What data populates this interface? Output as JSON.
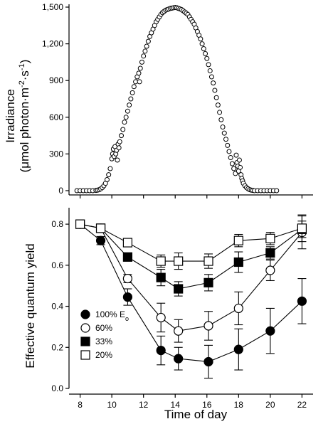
{
  "chart_data": [
    {
      "type": "scatter",
      "ylabel_line1": "Irradiance",
      "ylabel_line2_prefix": "(μmol photon·m",
      "ylabel_line2_exp1": "-2",
      "ylabel_line2_mid": "·s",
      "ylabel_line2_exp2": "-1",
      "ylabel_line2_suffix": ")",
      "ylim": [
        0,
        1500
      ],
      "xlim": [
        7.3,
        22.7
      ],
      "yticks": [
        0,
        300,
        600,
        900,
        1200,
        1500
      ],
      "ytick_labels": [
        "0",
        "300",
        "600",
        "900",
        "1,200",
        "1,500"
      ],
      "series": [
        {
          "marker": "open-circle",
          "x": [
            7.8,
            8.0,
            8.2,
            8.4,
            8.6,
            8.8,
            9.0,
            9.1,
            9.2,
            9.3,
            9.4,
            9.5,
            9.6,
            9.7,
            9.8,
            9.9,
            10.0,
            10.05,
            10.1,
            10.15,
            10.2,
            10.25,
            10.3,
            10.35,
            10.4,
            10.45,
            10.5,
            10.6,
            10.7,
            10.8,
            10.9,
            11.0,
            11.1,
            11.2,
            11.3,
            11.4,
            11.5,
            11.6,
            11.7,
            11.75,
            11.8,
            11.9,
            12.0,
            12.1,
            12.2,
            12.3,
            12.4,
            12.5,
            12.6,
            12.7,
            12.8,
            12.9,
            13.0,
            13.1,
            13.2,
            13.3,
            13.4,
            13.5,
            13.6,
            13.7,
            13.8,
            13.9,
            14.0,
            14.1,
            14.2,
            14.3,
            14.4,
            14.5,
            14.6,
            14.7,
            14.8,
            14.9,
            15.0,
            15.1,
            15.2,
            15.3,
            15.4,
            15.5,
            15.6,
            15.7,
            15.8,
            15.9,
            16.0,
            16.1,
            16.2,
            16.3,
            16.4,
            16.5,
            16.6,
            16.7,
            16.8,
            16.9,
            17.0,
            17.1,
            17.2,
            17.3,
            17.4,
            17.5,
            17.6,
            17.7,
            17.8,
            17.85,
            17.9,
            17.95,
            18.0,
            18.05,
            18.1,
            18.15,
            18.2,
            18.25,
            18.3,
            18.4,
            18.5,
            18.6,
            18.7,
            18.8,
            18.9,
            19.0,
            19.2,
            19.4,
            19.6,
            19.8,
            20.0,
            20.2,
            20.4
          ],
          "y": [
            0,
            0,
            0,
            0,
            0,
            0,
            2,
            4,
            8,
            15,
            25,
            40,
            60,
            90,
            130,
            180,
            260,
            300,
            340,
            280,
            360,
            300,
            330,
            250,
            380,
            350,
            400,
            450,
            500,
            560,
            600,
            650,
            700,
            750,
            800,
            850,
            890,
            930,
            960,
            890,
            1000,
            1050,
            1100,
            1140,
            1180,
            1220,
            1260,
            1290,
            1320,
            1350,
            1380,
            1400,
            1420,
            1440,
            1455,
            1465,
            1475,
            1480,
            1485,
            1490,
            1492,
            1495,
            1497,
            1495,
            1490,
            1485,
            1480,
            1470,
            1460,
            1450,
            1440,
            1420,
            1400,
            1380,
            1360,
            1330,
            1300,
            1270,
            1240,
            1200,
            1160,
            1120,
            1080,
            1030,
            980,
            930,
            880,
            820,
            760,
            700,
            640,
            580,
            520,
            470,
            420,
            370,
            320,
            270,
            220,
            180,
            140,
            290,
            230,
            200,
            160,
            250,
            190,
            130,
            100,
            80,
            60,
            40,
            25,
            15,
            8,
            4,
            2,
            0,
            0,
            0,
            0,
            0,
            0,
            0,
            0
          ]
        }
      ]
    },
    {
      "type": "line",
      "xlabel": "Time of day",
      "ylabel": "Effective quantum yield",
      "ylim": [
        0.0,
        0.88
      ],
      "xlim": [
        7.3,
        22.7
      ],
      "xticks": [
        8,
        10,
        12,
        14,
        16,
        18,
        20,
        22
      ],
      "xtick_labels": [
        "8",
        "10",
        "12",
        "14",
        "16",
        "18",
        "20",
        "22"
      ],
      "yticks": [
        0.0,
        0.2,
        0.4,
        0.6,
        0.8
      ],
      "ytick_labels": [
        "0.0",
        "0.2",
        "0.4",
        "0.6",
        "0.8"
      ],
      "x": [
        8,
        9.3,
        11,
        13.1,
        14.2,
        16.1,
        18,
        20,
        22
      ],
      "legend_position": "bottom-left",
      "series": [
        {
          "name": "100% E",
          "name_subscript": "o",
          "marker": "filled-circle",
          "values": [
            0.8,
            0.72,
            0.445,
            0.185,
            0.145,
            0.13,
            0.19,
            0.28,
            0.425
          ],
          "errors": [
            0.01,
            0.02,
            0.04,
            0.07,
            0.055,
            0.08,
            0.1,
            0.11,
            0.11
          ]
        },
        {
          "name": "60%",
          "marker": "open-circle",
          "values": [
            0.8,
            0.78,
            0.535,
            0.345,
            0.28,
            0.305,
            0.39,
            0.575,
            0.76
          ],
          "errors": [
            0.01,
            0.015,
            0.02,
            0.07,
            0.055,
            0.07,
            0.08,
            0.05,
            0.08
          ]
        },
        {
          "name": "33%",
          "marker": "filled-square",
          "values": [
            0.8,
            0.78,
            0.64,
            0.54,
            0.485,
            0.515,
            0.615,
            0.66,
            0.775
          ],
          "errors": [
            0.01,
            0.015,
            0.02,
            0.04,
            0.035,
            0.04,
            0.05,
            0.03,
            0.04
          ]
        },
        {
          "name": "20%",
          "marker": "open-square",
          "values": [
            0.8,
            0.78,
            0.71,
            0.62,
            0.62,
            0.62,
            0.72,
            0.73,
            0.78
          ],
          "errors": [
            0.01,
            0.015,
            0.015,
            0.03,
            0.04,
            0.035,
            0.03,
            0.03,
            0.065
          ]
        }
      ]
    }
  ]
}
